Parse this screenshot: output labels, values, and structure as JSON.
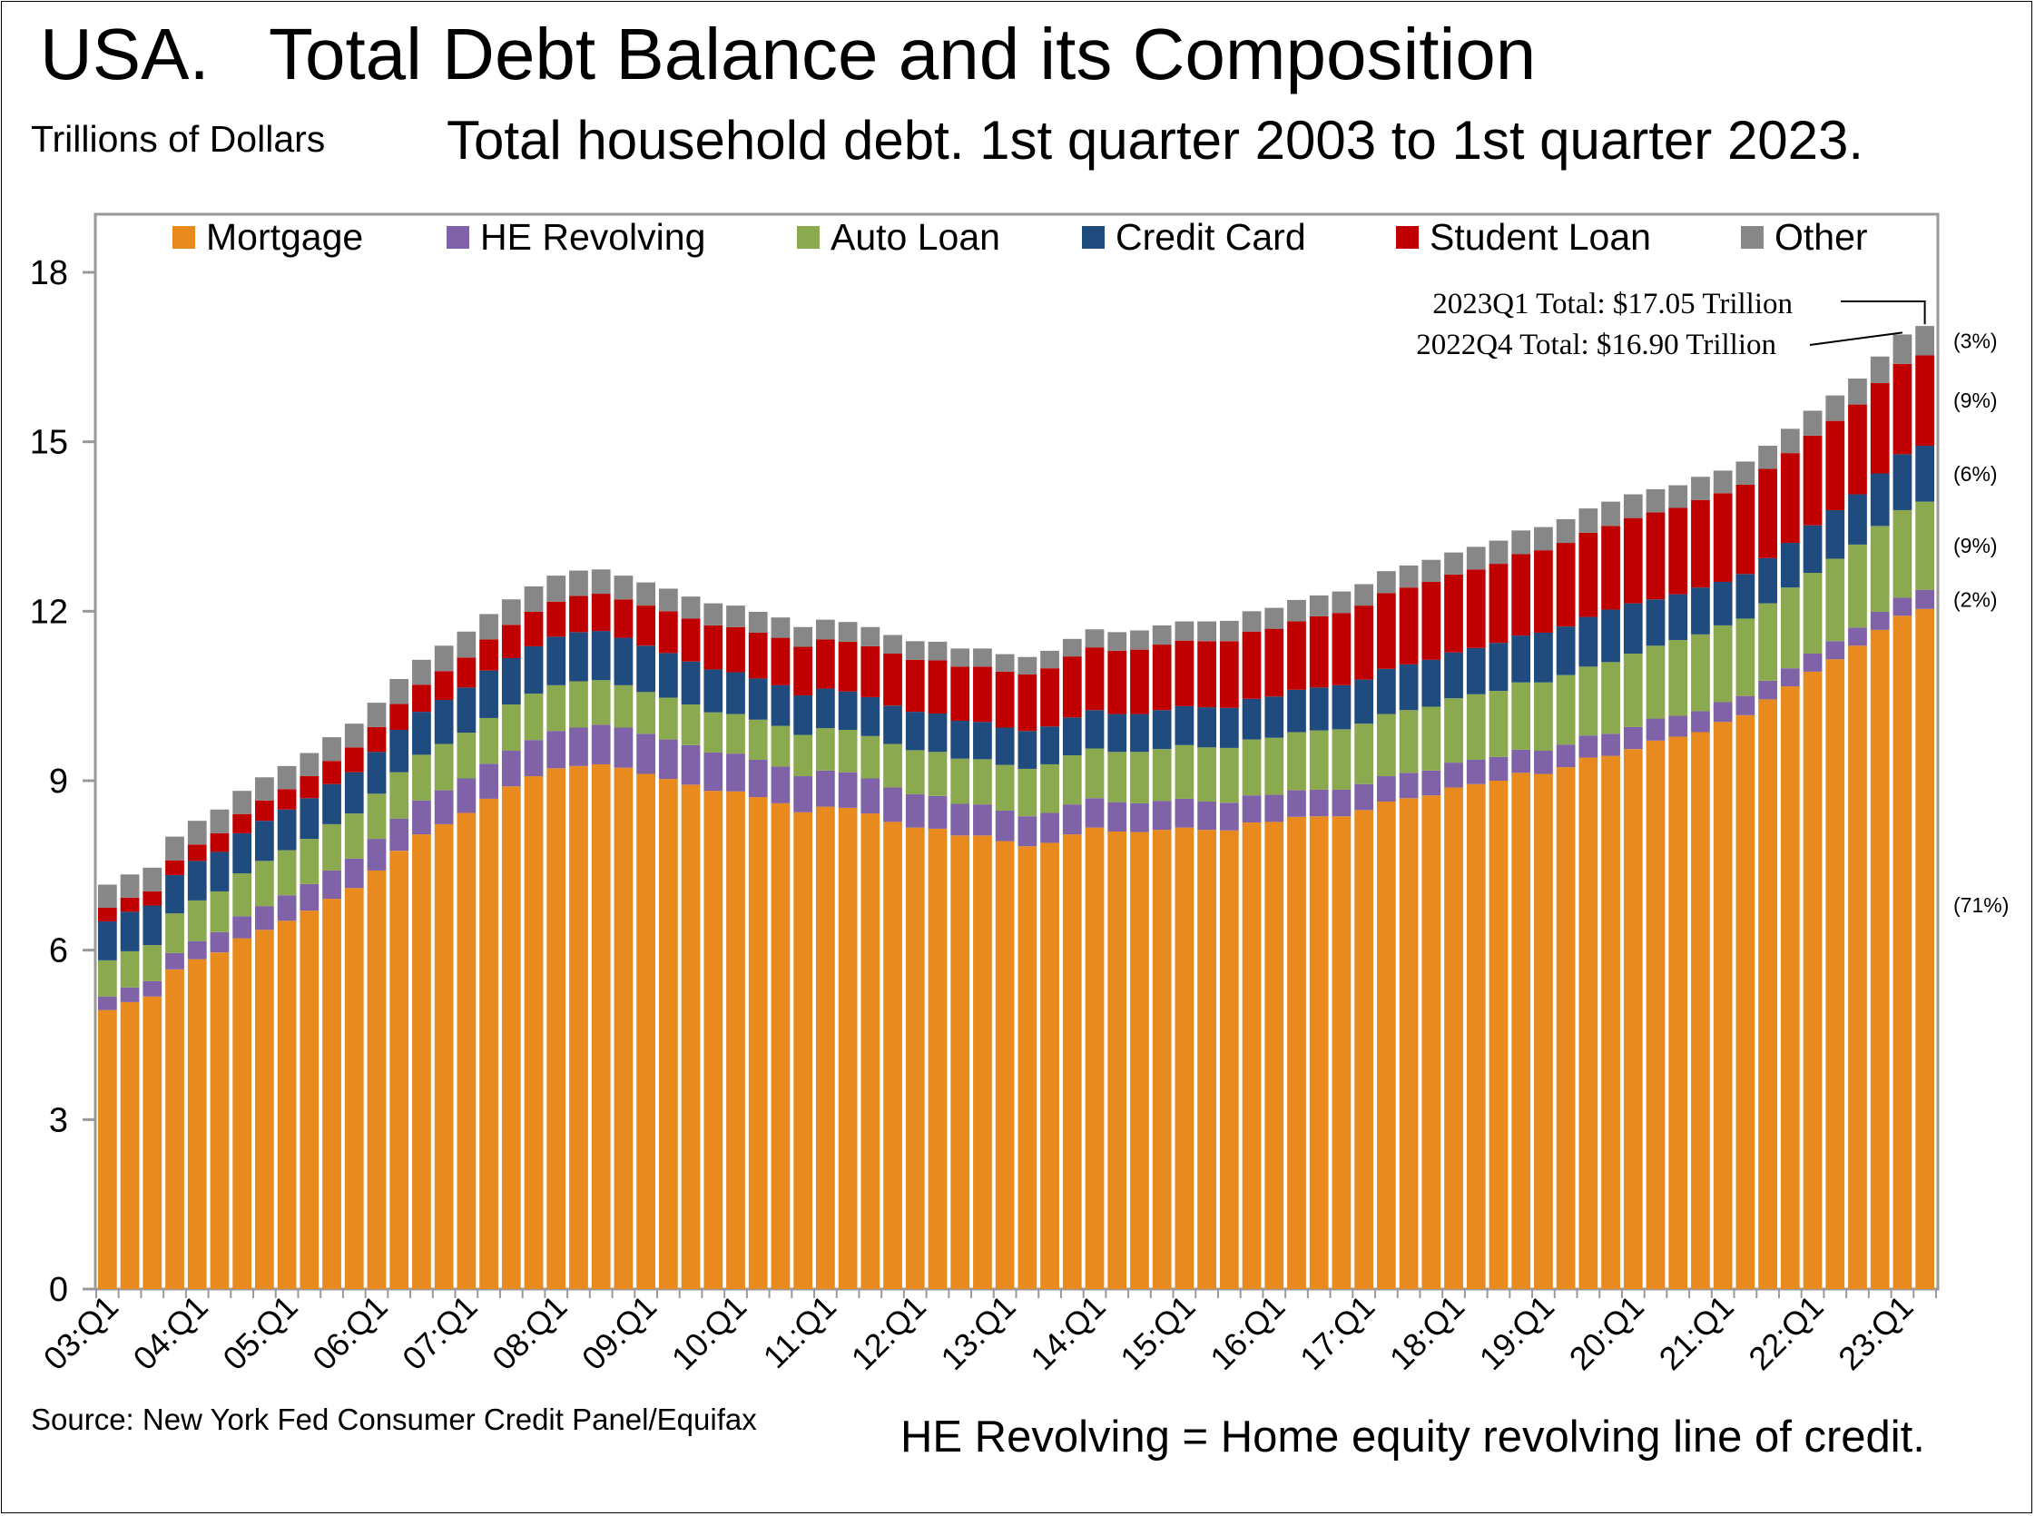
{
  "chart_data": {
    "type": "bar",
    "stacked": true,
    "title": "USA.   Total Debt Balance and its Composition",
    "subtitle": "Total household debt. 1st quarter 2003 to 1st quarter 2023.",
    "units_label": "Trillions of Dollars",
    "source": "Source: New York Fed Consumer Credit Panel/Equifax",
    "footnote": "HE Revolving = Home equity revolving line of credit.",
    "ylim": [
      0,
      19
    ],
    "yticks": [
      "0",
      "3",
      "6",
      "9",
      "12",
      "15",
      "18"
    ],
    "xtick_labels": [
      "03:Q1",
      "04:Q1",
      "05:Q1",
      "06:Q1",
      "07:Q1",
      "08:Q1",
      "09:Q1",
      "10:Q1",
      "11:Q1",
      "12:Q1",
      "13:Q1",
      "14:Q1",
      "15:Q1",
      "16:Q1",
      "17:Q1",
      "18:Q1",
      "19:Q1",
      "20:Q1",
      "21:Q1",
      "22:Q1",
      "23:Q1"
    ],
    "legend_position": "top",
    "series": [
      {
        "name": "Mortgage",
        "color": "#E98A1F",
        "values": [
          4.94,
          5.08,
          5.18,
          5.66,
          5.84,
          5.96,
          6.21,
          6.36,
          6.52,
          6.7,
          6.91,
          7.1,
          7.41,
          7.76,
          8.05,
          8.23,
          8.43,
          8.68,
          8.9,
          9.08,
          9.22,
          9.26,
          9.29,
          9.23,
          9.12,
          9.03,
          8.93,
          8.82,
          8.81,
          8.71,
          8.6,
          8.44,
          8.54,
          8.52,
          8.42,
          8.27,
          8.17,
          8.15,
          8.03,
          8.03,
          7.93,
          7.84,
          7.9,
          8.05,
          8.17,
          8.1,
          8.09,
          8.13,
          8.17,
          8.13,
          8.12,
          8.26,
          8.27,
          8.36,
          8.37,
          8.37,
          8.48,
          8.63,
          8.69,
          8.74,
          8.88,
          8.94,
          9.0,
          9.14,
          9.12,
          9.24,
          9.41,
          9.44,
          9.56,
          9.71,
          9.78,
          9.86,
          10.04,
          10.16,
          10.44,
          10.67,
          10.93,
          11.15,
          11.39,
          11.67,
          11.92,
          12.04
        ]
      },
      {
        "name": "HE Revolving",
        "color": "#7F62A8",
        "values": [
          0.24,
          0.26,
          0.27,
          0.29,
          0.32,
          0.36,
          0.39,
          0.42,
          0.45,
          0.47,
          0.5,
          0.52,
          0.56,
          0.57,
          0.6,
          0.6,
          0.61,
          0.62,
          0.63,
          0.64,
          0.66,
          0.68,
          0.7,
          0.71,
          0.71,
          0.7,
          0.7,
          0.68,
          0.67,
          0.66,
          0.65,
          0.64,
          0.64,
          0.63,
          0.62,
          0.61,
          0.59,
          0.58,
          0.56,
          0.55,
          0.54,
          0.53,
          0.53,
          0.53,
          0.52,
          0.52,
          0.51,
          0.51,
          0.51,
          0.5,
          0.49,
          0.48,
          0.48,
          0.47,
          0.47,
          0.47,
          0.46,
          0.45,
          0.45,
          0.44,
          0.44,
          0.43,
          0.42,
          0.41,
          0.41,
          0.4,
          0.39,
          0.39,
          0.39,
          0.39,
          0.37,
          0.37,
          0.35,
          0.34,
          0.33,
          0.32,
          0.32,
          0.32,
          0.32,
          0.32,
          0.32,
          0.34
        ]
      },
      {
        "name": "Auto Loan",
        "color": "#8BA94F",
        "values": [
          0.64,
          0.64,
          0.64,
          0.7,
          0.72,
          0.72,
          0.76,
          0.8,
          0.8,
          0.8,
          0.82,
          0.8,
          0.8,
          0.82,
          0.81,
          0.82,
          0.81,
          0.81,
          0.82,
          0.82,
          0.81,
          0.82,
          0.79,
          0.75,
          0.74,
          0.74,
          0.72,
          0.71,
          0.7,
          0.71,
          0.72,
          0.73,
          0.75,
          0.75,
          0.75,
          0.77,
          0.78,
          0.78,
          0.8,
          0.8,
          0.81,
          0.84,
          0.86,
          0.87,
          0.88,
          0.89,
          0.91,
          0.92,
          0.95,
          0.96,
          0.97,
          0.99,
          1.01,
          1.03,
          1.05,
          1.07,
          1.07,
          1.1,
          1.11,
          1.13,
          1.14,
          1.16,
          1.17,
          1.19,
          1.21,
          1.23,
          1.22,
          1.27,
          1.3,
          1.29,
          1.34,
          1.36,
          1.36,
          1.37,
          1.37,
          1.43,
          1.43,
          1.46,
          1.47,
          1.52,
          1.55,
          1.56
        ]
      },
      {
        "name": "Credit Card",
        "color": "#1F4B7F",
        "values": [
          0.69,
          0.7,
          0.7,
          0.68,
          0.7,
          0.7,
          0.71,
          0.71,
          0.72,
          0.72,
          0.71,
          0.73,
          0.74,
          0.75,
          0.76,
          0.78,
          0.8,
          0.84,
          0.82,
          0.84,
          0.86,
          0.87,
          0.87,
          0.84,
          0.82,
          0.79,
          0.76,
          0.76,
          0.74,
          0.73,
          0.72,
          0.7,
          0.7,
          0.68,
          0.69,
          0.68,
          0.68,
          0.68,
          0.67,
          0.66,
          0.66,
          0.67,
          0.67,
          0.67,
          0.68,
          0.67,
          0.67,
          0.69,
          0.69,
          0.71,
          0.71,
          0.72,
          0.73,
          0.75,
          0.76,
          0.78,
          0.78,
          0.8,
          0.81,
          0.83,
          0.81,
          0.82,
          0.85,
          0.83,
          0.88,
          0.86,
          0.88,
          0.93,
          0.89,
          0.82,
          0.81,
          0.83,
          0.77,
          0.79,
          0.8,
          0.79,
          0.84,
          0.86,
          0.89,
          0.93,
          0.99,
          0.99
        ]
      },
      {
        "name": "Student Loan",
        "color": "#C00000",
        "values": [
          0.24,
          0.25,
          0.25,
          0.26,
          0.29,
          0.33,
          0.34,
          0.36,
          0.36,
          0.39,
          0.41,
          0.44,
          0.44,
          0.46,
          0.48,
          0.51,
          0.53,
          0.55,
          0.59,
          0.61,
          0.62,
          0.64,
          0.66,
          0.68,
          0.71,
          0.74,
          0.76,
          0.78,
          0.8,
          0.81,
          0.84,
          0.86,
          0.87,
          0.88,
          0.9,
          0.92,
          0.92,
          0.94,
          0.96,
          0.98,
          0.99,
          1.0,
          1.03,
          1.08,
          1.11,
          1.12,
          1.14,
          1.16,
          1.16,
          1.17,
          1.18,
          1.19,
          1.2,
          1.21,
          1.26,
          1.28,
          1.31,
          1.34,
          1.36,
          1.38,
          1.38,
          1.39,
          1.4,
          1.44,
          1.46,
          1.48,
          1.49,
          1.48,
          1.51,
          1.54,
          1.53,
          1.55,
          1.57,
          1.58,
          1.58,
          1.59,
          1.59,
          1.58,
          1.59,
          1.6,
          1.6,
          1.6
        ]
      },
      {
        "name": "Other",
        "color": "#878787",
        "values": [
          0.41,
          0.41,
          0.42,
          0.42,
          0.42,
          0.42,
          0.41,
          0.41,
          0.41,
          0.41,
          0.42,
          0.42,
          0.43,
          0.44,
          0.44,
          0.45,
          0.46,
          0.45,
          0.45,
          0.45,
          0.46,
          0.45,
          0.43,
          0.42,
          0.41,
          0.4,
          0.39,
          0.39,
          0.38,
          0.37,
          0.36,
          0.35,
          0.35,
          0.35,
          0.34,
          0.33,
          0.33,
          0.33,
          0.32,
          0.32,
          0.31,
          0.31,
          0.31,
          0.31,
          0.32,
          0.33,
          0.34,
          0.34,
          0.34,
          0.35,
          0.36,
          0.36,
          0.37,
          0.38,
          0.37,
          0.38,
          0.38,
          0.39,
          0.39,
          0.39,
          0.39,
          0.4,
          0.41,
          0.42,
          0.41,
          0.42,
          0.43,
          0.43,
          0.42,
          0.41,
          0.4,
          0.41,
          0.4,
          0.41,
          0.41,
          0.43,
          0.44,
          0.45,
          0.46,
          0.47,
          0.52,
          0.52
        ]
      }
    ],
    "annotations": [
      {
        "text": "2023Q1 Total: $17.05 Trillion"
      },
      {
        "text": "2022Q4 Total: $16.90 Trillion"
      }
    ],
    "shares": [
      {
        "series": "Other",
        "text": "(3%)"
      },
      {
        "series": "Student Loan",
        "text": "(9%)"
      },
      {
        "series": "Credit Card",
        "text": "(6%)"
      },
      {
        "series": "Auto Loan",
        "text": "(9%)"
      },
      {
        "series": "HE Revolving",
        "text": "(2%)"
      },
      {
        "series": "Mortgage",
        "text": "(71%)"
      }
    ]
  }
}
